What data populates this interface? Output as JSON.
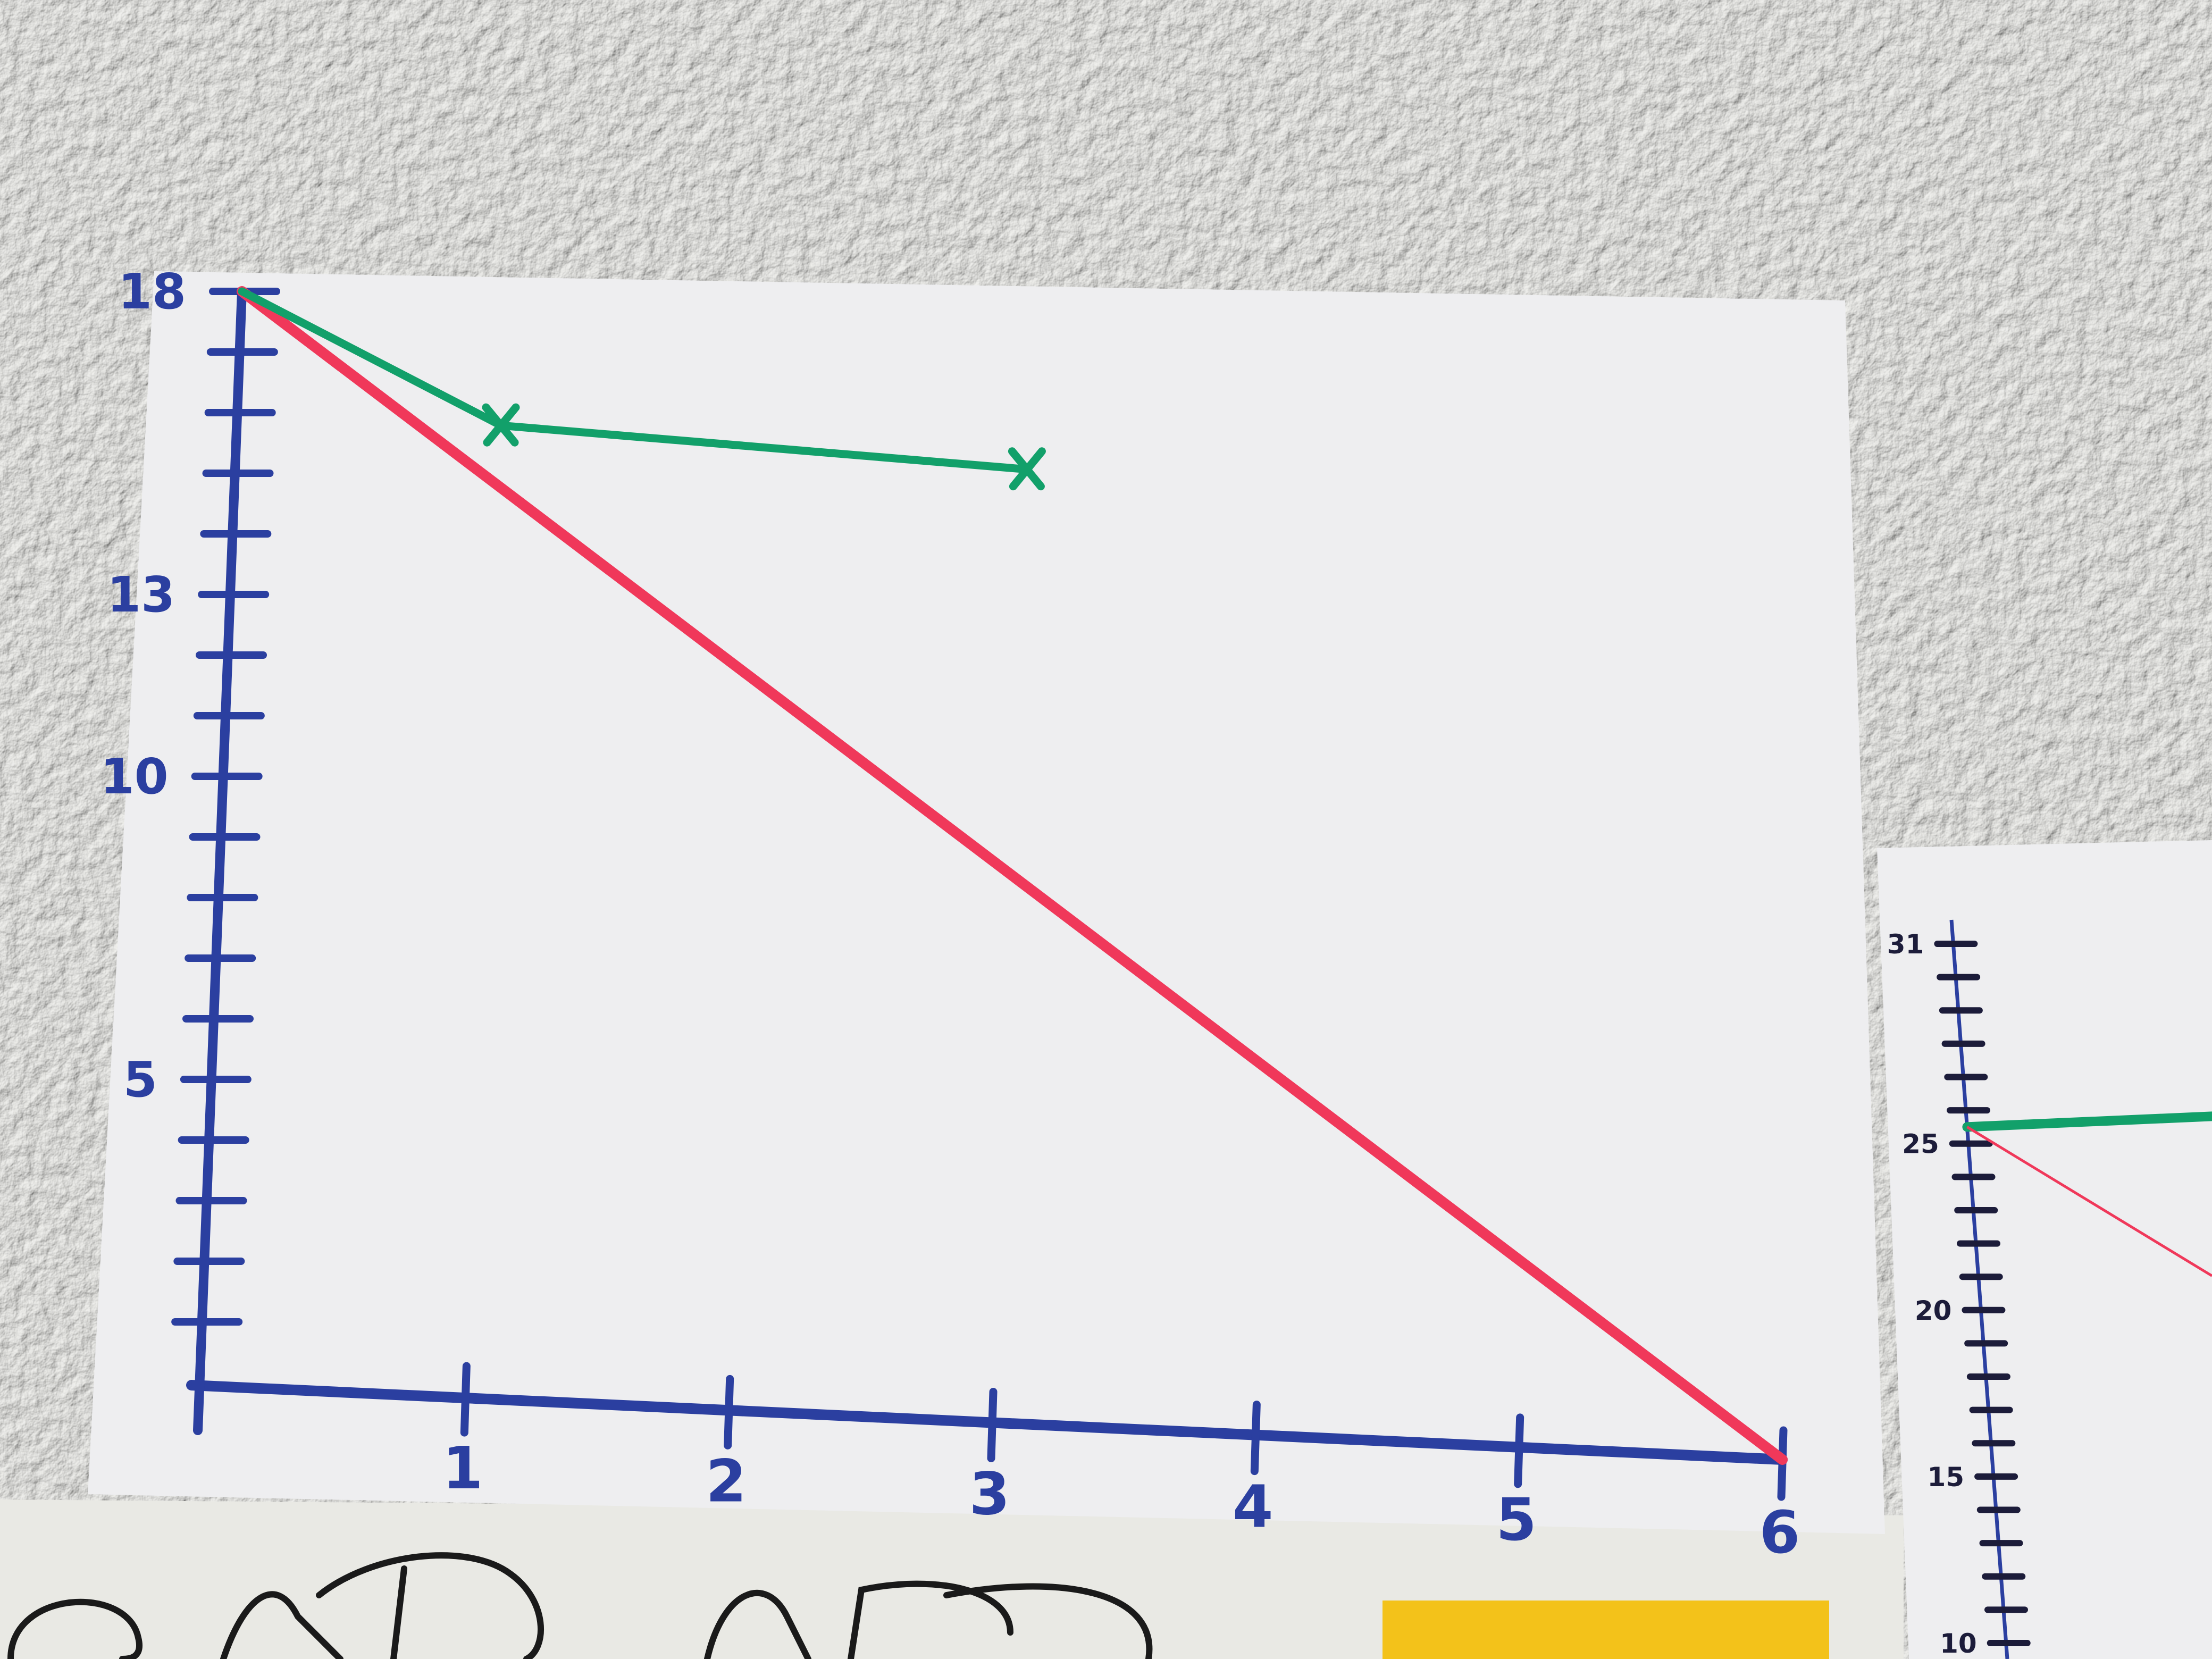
{
  "colors": {
    "axis": "#2b3fa0",
    "ideal_line": "#f0385a",
    "actual_line": "#12a06a",
    "paper": "#eeeef0",
    "wall": "#e6e6e3",
    "handwriting": "#1a1a1a",
    "sticky_note": "#f3c21a"
  },
  "chart_data": [
    {
      "type": "line",
      "title": "",
      "xlabel": "",
      "ylabel": "",
      "xlim": [
        0,
        6
      ],
      "ylim": [
        0,
        18
      ],
      "x_tick_labels": [
        "1",
        "2",
        "3",
        "4",
        "5",
        "6"
      ],
      "y_tick_labels": [
        {
          "value": 5,
          "label": "5"
        },
        {
          "value": 10,
          "label": "10"
        },
        {
          "value": 13,
          "label": "13"
        },
        {
          "value": 18,
          "label": "18"
        }
      ],
      "y_tick_count": 18,
      "grid": false,
      "series": [
        {
          "color": "#f0385a",
          "marker": "none",
          "x": [
            0,
            6
          ],
          "y": [
            18,
            0
          ]
        },
        {
          "color": "#12a06a",
          "marker": "x",
          "x": [
            0,
            1,
            3
          ],
          "y": [
            18,
            16,
            15.7
          ]
        }
      ]
    },
    {
      "type": "line",
      "title": "",
      "partially_visible": true,
      "ylim": [
        10,
        31
      ],
      "y_tick_labels": [
        {
          "value": 31,
          "label": "31"
        },
        {
          "value": 25,
          "label": "25"
        },
        {
          "value": 20,
          "label": "20"
        },
        {
          "value": 15,
          "label": "15"
        },
        {
          "value": 10,
          "label": "10"
        }
      ],
      "series": [
        {
          "color": "#12a06a",
          "x": [
            0
          ],
          "y": [
            25.5
          ]
        },
        {
          "color": "#f0385a",
          "x": [
            0
          ],
          "y": [
            25.5
          ]
        }
      ]
    }
  ]
}
